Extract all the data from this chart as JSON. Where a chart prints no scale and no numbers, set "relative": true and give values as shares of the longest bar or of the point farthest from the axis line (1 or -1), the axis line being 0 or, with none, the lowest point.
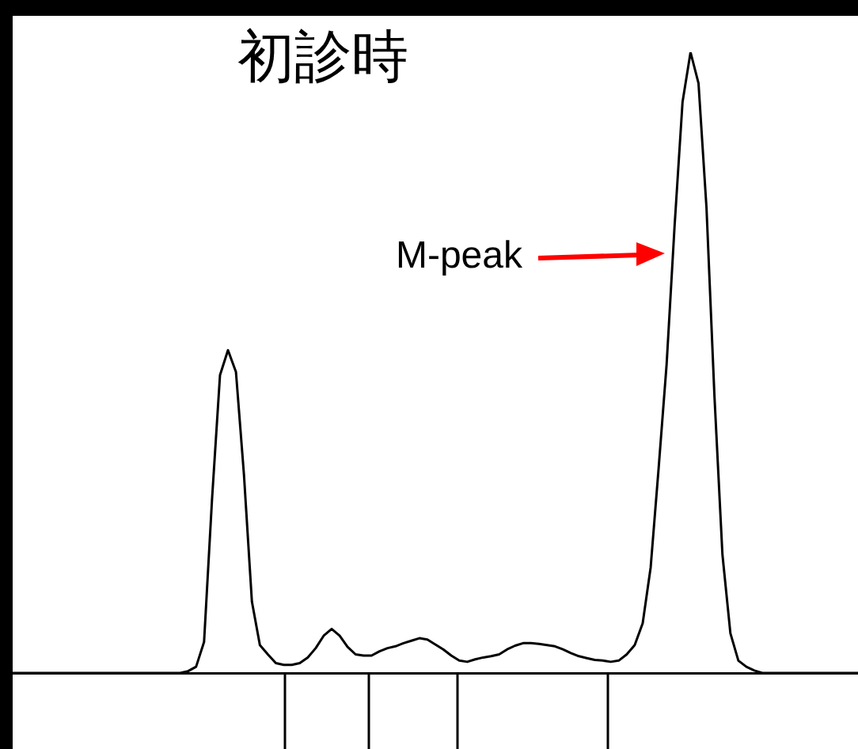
{
  "chart_data": {
    "type": "line",
    "title": "初診時",
    "relative": true,
    "legend": false,
    "marker": "none",
    "categories": [
      null,
      null,
      null,
      null,
      null,
      null,
      null,
      null,
      null,
      null,
      null,
      null,
      null,
      null,
      null,
      null,
      null,
      null,
      null,
      null,
      null,
      null,
      null,
      null,
      null,
      null,
      null,
      null,
      null,
      null,
      null,
      null,
      null,
      null,
      null,
      null,
      null,
      null,
      null,
      null,
      null,
      null,
      null,
      null,
      null,
      null,
      null,
      null,
      null,
      null,
      null,
      null,
      null,
      null,
      null,
      null,
      null,
      null,
      null,
      null,
      null,
      null,
      null,
      null,
      null,
      null,
      null,
      null,
      null,
      null,
      null,
      null,
      null,
      null,
      null,
      null,
      null,
      null,
      null,
      null,
      null,
      null,
      null,
      null,
      null,
      null,
      null,
      null,
      null,
      null,
      null,
      null,
      null,
      null,
      null,
      null,
      null,
      null,
      null,
      null,
      null,
      null,
      null,
      null,
      null,
      null,
      null
    ],
    "series": [
      {
        "color": "#000000",
        "values": [
          0,
          0,
          0,
          0,
          0,
          0,
          0,
          0,
          0,
          0,
          0,
          0,
          0,
          0,
          0,
          0,
          0,
          0,
          0,
          0,
          0,
          0,
          0.003,
          0.01,
          0.05,
          0.28,
          0.48,
          0.52,
          0.485,
          0.32,
          0.115,
          0.045,
          0.03,
          0.016,
          0.013,
          0.013,
          0.016,
          0.025,
          0.04,
          0.06,
          0.071,
          0.06,
          0.042,
          0.03,
          0.028,
          0.028,
          0.035,
          0.04,
          0.043,
          0.048,
          0.052,
          0.056,
          0.054,
          0.046,
          0.038,
          0.028,
          0.02,
          0.018,
          0.022,
          0.025,
          0.027,
          0.03,
          0.038,
          0.044,
          0.048,
          0.048,
          0.047,
          0.045,
          0.043,
          0.038,
          0.032,
          0.027,
          0.024,
          0.021,
          0.02,
          0.018,
          0.02,
          0.03,
          0.045,
          0.08,
          0.17,
          0.33,
          0.497,
          0.72,
          0.92,
          1,
          0.95,
          0.75,
          0.446,
          0.191,
          0.064,
          0.02,
          0.01,
          0.004,
          0,
          0,
          0,
          0,
          0,
          0,
          0,
          0,
          0,
          0,
          0,
          0,
          0
        ]
      }
    ],
    "annotations": [
      "M-peak"
    ]
  }
}
